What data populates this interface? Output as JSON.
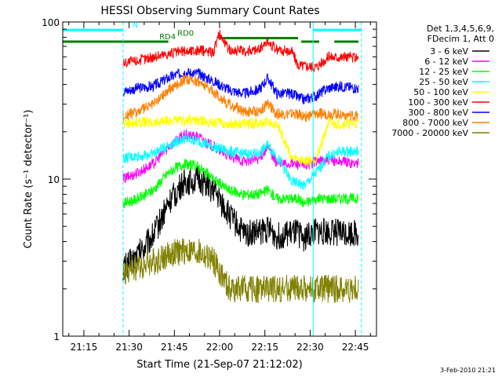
{
  "chart_data": {
    "type": "line",
    "title": "HESSI Observing Summary Count Rates",
    "xlabel": "Start Time (21-Sep-07 21:12:02)",
    "ylabel": "Count Rate (s⁻¹ detector⁻¹)",
    "y_scale": "log",
    "ylim": [
      1,
      100
    ],
    "y_ticks": [
      {
        "value": 1,
        "label": "1"
      },
      {
        "value": 10,
        "label": "10"
      },
      {
        "value": 100,
        "label": "100"
      }
    ],
    "xlim": [
      "21:08",
      "22:52"
    ],
    "x_ticks": [
      "21:15",
      "21:30",
      "21:45",
      "22:00",
      "22:15",
      "22:30",
      "22:45"
    ],
    "legend_header": [
      "Det 1,3,4,5,6,9,",
      "FDecim 1, Att 0"
    ],
    "legend_position": "right",
    "series": [
      {
        "name": "3 - 6 keV",
        "color": "#000000",
        "x": [
          "21:28",
          "21:33",
          "21:38",
          "21:43",
          "21:48",
          "21:53",
          "21:58",
          "22:03",
          "22:08",
          "22:13",
          "22:16",
          "22:19",
          "22:24",
          "22:26",
          "22:28",
          "22:32",
          "22:36",
          "22:40",
          "22:46"
        ],
        "y": [
          2.7,
          3.3,
          4.4,
          7.0,
          9.5,
          10.0,
          8.5,
          6.0,
          4.5,
          4.6,
          4.8,
          4.3,
          4.5,
          4.5,
          4.2,
          4.6,
          4.6,
          4.6,
          4.5
        ]
      },
      {
        "name": "6 - 12 keV",
        "color": "#ff00ff",
        "x": [
          "21:28",
          "21:33",
          "21:38",
          "21:43",
          "21:48",
          "21:53",
          "21:58",
          "22:03",
          "22:08",
          "22:13",
          "22:16",
          "22:19",
          "22:24",
          "22:26",
          "22:28",
          "22:32",
          "22:36",
          "22:40",
          "22:46"
        ],
        "y": [
          10.0,
          11.0,
          12.5,
          16.0,
          19.0,
          18.5,
          16.0,
          14.0,
          13.0,
          13.5,
          16.0,
          12.5,
          12.5,
          12.5,
          12.0,
          13.0,
          13.0,
          13.0,
          12.5
        ]
      },
      {
        "name": "12 - 25 keV",
        "color": "#00ff00",
        "x": [
          "21:28",
          "21:33",
          "21:38",
          "21:43",
          "21:48",
          "21:53",
          "21:58",
          "22:03",
          "22:08",
          "22:13",
          "22:16",
          "22:19",
          "22:24",
          "22:26",
          "22:28",
          "22:32",
          "22:36",
          "22:40",
          "22:46"
        ],
        "y": [
          7.0,
          7.5,
          8.5,
          11.0,
          12.5,
          12.0,
          10.0,
          8.5,
          8.0,
          8.0,
          8.5,
          7.5,
          7.5,
          7.5,
          7.0,
          7.5,
          7.5,
          7.5,
          7.5
        ]
      },
      {
        "name": "25 - 50 keV",
        "color": "#00ffff",
        "x": [
          "21:28",
          "21:33",
          "21:38",
          "21:43",
          "21:48",
          "21:53",
          "21:58",
          "22:03",
          "22:08",
          "22:13",
          "22:16",
          "22:19",
          "22:24",
          "22:26",
          "22:28",
          "22:32",
          "22:36",
          "22:40",
          "22:46"
        ],
        "y": [
          13.5,
          14.0,
          14.5,
          16.5,
          18.0,
          17.5,
          16.0,
          15.0,
          14.5,
          14.5,
          16.5,
          14.0,
          9.5,
          9.5,
          9.0,
          11.0,
          14.0,
          15.0,
          15.0
        ]
      },
      {
        "name": "50 - 100 keV",
        "color": "#ffff00",
        "x": [
          "21:28",
          "21:33",
          "21:38",
          "21:43",
          "21:48",
          "21:53",
          "21:58",
          "22:03",
          "22:08",
          "22:13",
          "22:16",
          "22:19",
          "22:24",
          "22:26",
          "22:28",
          "22:32",
          "22:36",
          "22:40",
          "22:46"
        ],
        "y": [
          22.5,
          23.0,
          23.0,
          23.5,
          23.5,
          23.5,
          23.0,
          22.5,
          22.5,
          22.5,
          23.0,
          22.5,
          13.5,
          13.5,
          13.0,
          13.5,
          22.5,
          22.5,
          22.5
        ]
      },
      {
        "name": "100 - 300 keV",
        "color": "#ff0000",
        "x": [
          "21:28",
          "21:33",
          "21:38",
          "21:43",
          "21:48",
          "21:53",
          "21:58",
          "22:00",
          "22:03",
          "22:08",
          "22:13",
          "22:16",
          "22:19",
          "22:24",
          "22:26",
          "22:28",
          "22:32",
          "22:36",
          "22:40",
          "22:46"
        ],
        "y": [
          55,
          57,
          60,
          63,
          65,
          66,
          65,
          85,
          67,
          65,
          67,
          75,
          66,
          65,
          53,
          53,
          52,
          60,
          60,
          59
        ]
      },
      {
        "name": "300 - 800 keV",
        "color": "#0000ff",
        "x": [
          "21:28",
          "21:33",
          "21:38",
          "21:43",
          "21:48",
          "21:53",
          "21:58",
          "22:03",
          "22:08",
          "22:13",
          "22:16",
          "22:19",
          "22:24",
          "22:26",
          "22:28",
          "22:32",
          "22:36",
          "22:40",
          "22:46"
        ],
        "y": [
          36,
          38,
          39,
          44,
          48,
          47,
          42,
          37,
          35,
          37,
          44,
          35,
          35,
          33,
          32,
          34,
          38,
          39,
          38
        ]
      },
      {
        "name": "800 - 7000 keV",
        "color": "#ff8000",
        "x": [
          "21:28",
          "21:33",
          "21:38",
          "21:43",
          "21:48",
          "21:53",
          "21:58",
          "22:03",
          "22:08",
          "22:13",
          "22:16",
          "22:19",
          "22:24",
          "22:26",
          "22:28",
          "22:32",
          "22:36",
          "22:40",
          "22:46"
        ],
        "y": [
          25,
          27,
          30,
          37,
          43,
          42,
          36,
          30,
          27,
          27,
          30,
          26,
          26,
          26,
          25,
          26,
          26,
          26,
          25
        ]
      },
      {
        "name": "7000 - 20000 keV",
        "color": "#808000",
        "x": [
          "21:28",
          "21:33",
          "21:38",
          "21:43",
          "21:48",
          "21:53",
          "21:58",
          "22:03",
          "22:08",
          "22:13",
          "22:16",
          "22:19",
          "22:24",
          "22:26",
          "22:28",
          "22:32",
          "22:36",
          "22:40",
          "22:46"
        ],
        "y": [
          2.5,
          2.8,
          3.0,
          3.3,
          3.5,
          3.4,
          3.0,
          2.0,
          2.0,
          2.0,
          2.0,
          2.0,
          2.0,
          2.0,
          2.0,
          2.0,
          2.0,
          2.0,
          2.0
        ]
      }
    ],
    "flags": [
      {
        "label": "N",
        "color": "#00ffff",
        "y": 89,
        "segments": [
          [
            "21:08",
            "21:28"
          ],
          [
            "22:31",
            "22:47"
          ]
        ]
      },
      {
        "label": "RD0",
        "color": "#008000",
        "y": 79,
        "segments": [
          [
            "22:00",
            "22:26"
          ]
        ]
      },
      {
        "label": "RD4",
        "color": "#008000",
        "y": 75,
        "segments": [
          [
            "21:08",
            "21:43"
          ],
          [
            "22:27",
            "22:33"
          ],
          [
            "22:38",
            "22:46"
          ]
        ]
      }
    ],
    "flag_label_x": {
      "N": "21:31",
      "RD0": "21:46",
      "RD4": "21:40"
    },
    "vlines": [
      {
        "x": "21:28",
        "color": "#00ffff",
        "style": "dashed"
      },
      {
        "x": "22:31",
        "color": "#00ffff",
        "style": "solid"
      },
      {
        "x": "22:47",
        "color": "#00ffff",
        "style": "dashed"
      }
    ],
    "footer": "3-Feb-2010 21:21"
  }
}
